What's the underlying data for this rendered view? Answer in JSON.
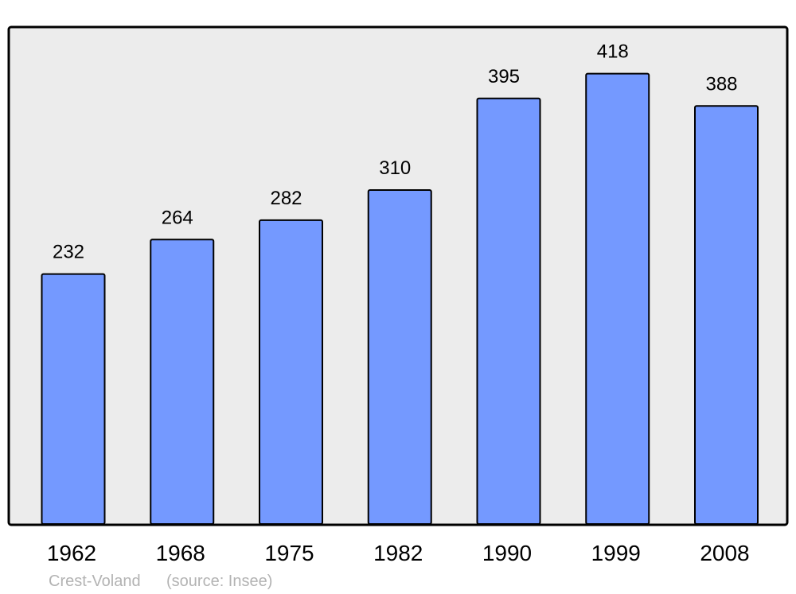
{
  "chart_data": {
    "type": "bar",
    "categories": [
      "1962",
      "1968",
      "1975",
      "1982",
      "1990",
      "1999",
      "2008"
    ],
    "values": [
      232,
      264,
      282,
      310,
      395,
      418,
      388
    ],
    "title": "",
    "xlabel": "",
    "ylabel": "",
    "ylim": [
      0,
      460
    ],
    "grid": false,
    "data_labels": true,
    "colors": {
      "bar": "#7499ff",
      "plot_background": "#ececec",
      "outline": "#000000",
      "footer": "#b3b3b3"
    }
  },
  "footer": {
    "place": "Crest-Voland",
    "source": "(source: Insee)"
  }
}
